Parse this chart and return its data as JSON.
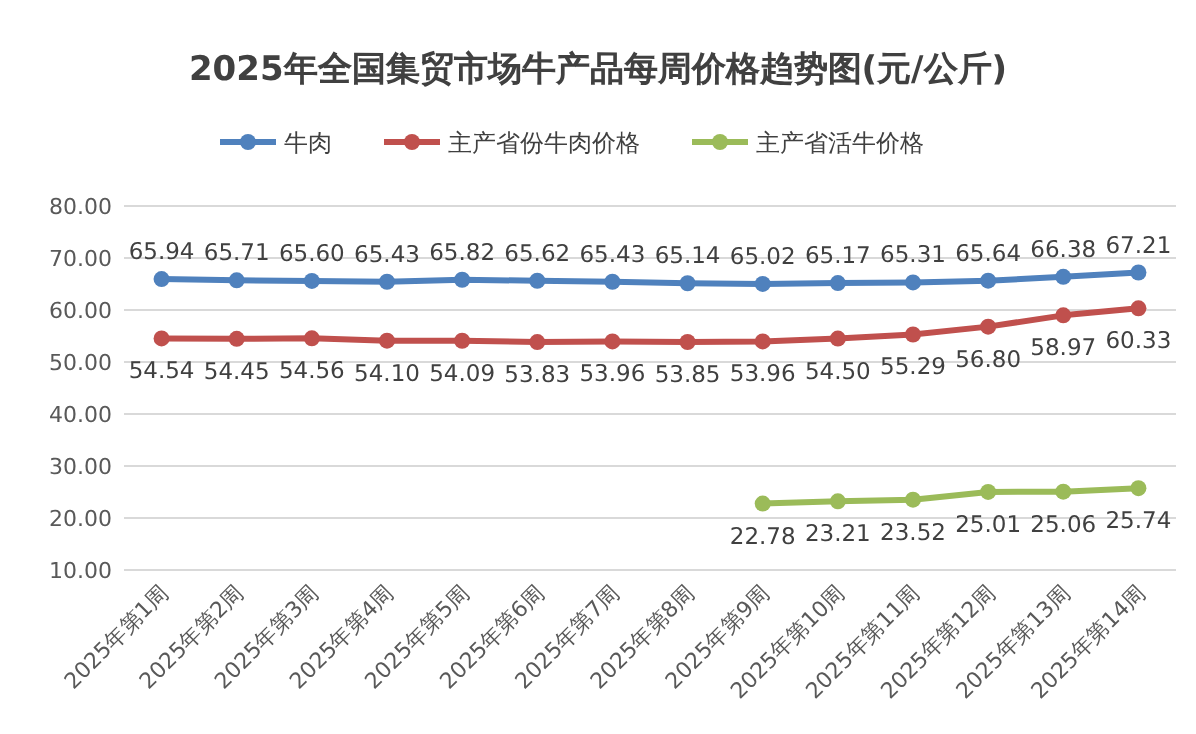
{
  "chart_data": {
    "type": "line",
    "title": "2025年全国集贸市场牛产品每周价格趋势图(元/公斤)",
    "categories": [
      "2025年第1周",
      "2025年第2周",
      "2025年第3周",
      "2025年第4周",
      "2025年第5周",
      "2025年第6周",
      "2025年第7周",
      "2025年第8周",
      "2025年第9周",
      "2025年第10周",
      "2025年第11周",
      "2025年第12周",
      "2025年第13周",
      "2025年第14周"
    ],
    "series": [
      {
        "name": "牛肉",
        "color": "#4f81bd",
        "values": [
          65.94,
          65.71,
          65.6,
          65.43,
          65.82,
          65.62,
          65.43,
          65.14,
          65.02,
          65.17,
          65.31,
          65.64,
          66.38,
          67.21
        ],
        "value_labels": [
          "65.94",
          "65.71",
          "65.60",
          "65.43",
          "65.82",
          "65.62",
          "65.43",
          "65.14",
          "65.02",
          "65.17",
          "65.31",
          "65.64",
          "66.38",
          "67.21"
        ]
      },
      {
        "name": "主产省份牛肉价格",
        "color": "#c0504d",
        "values": [
          54.54,
          54.45,
          54.56,
          54.1,
          54.09,
          53.83,
          53.96,
          53.85,
          53.96,
          54.5,
          55.29,
          56.8,
          58.97,
          60.33
        ],
        "value_labels": [
          "54.54",
          "54.45",
          "54.56",
          "54.10",
          "54.09",
          "53.83",
          "53.96",
          "53.85",
          "53.96",
          "54.50",
          "55.29",
          "56.80",
          "58.97",
          "60.33"
        ]
      },
      {
        "name": "主产省活牛价格",
        "color": "#9bbb59",
        "values": [
          null,
          null,
          null,
          null,
          null,
          null,
          null,
          null,
          22.78,
          23.21,
          23.52,
          25.01,
          25.06,
          25.74
        ],
        "value_labels": [
          null,
          null,
          null,
          null,
          null,
          null,
          null,
          null,
          "22.78",
          "23.21",
          "23.52",
          "25.01",
          "25.06",
          "25.74"
        ]
      }
    ],
    "ylim": [
      10,
      80
    ],
    "yticks": [
      {
        "value": 10,
        "label": "10.00"
      },
      {
        "value": 20,
        "label": "20.00"
      },
      {
        "value": 30,
        "label": "30.00"
      },
      {
        "value": 40,
        "label": "40.00"
      },
      {
        "value": 50,
        "label": "50.00"
      },
      {
        "value": 60,
        "label": "60.00"
      },
      {
        "value": 70,
        "label": "70.00"
      },
      {
        "value": 80,
        "label": "80.00"
      }
    ],
    "grid": "y",
    "legend": "top",
    "marker": "circle",
    "line_style": "solid"
  }
}
